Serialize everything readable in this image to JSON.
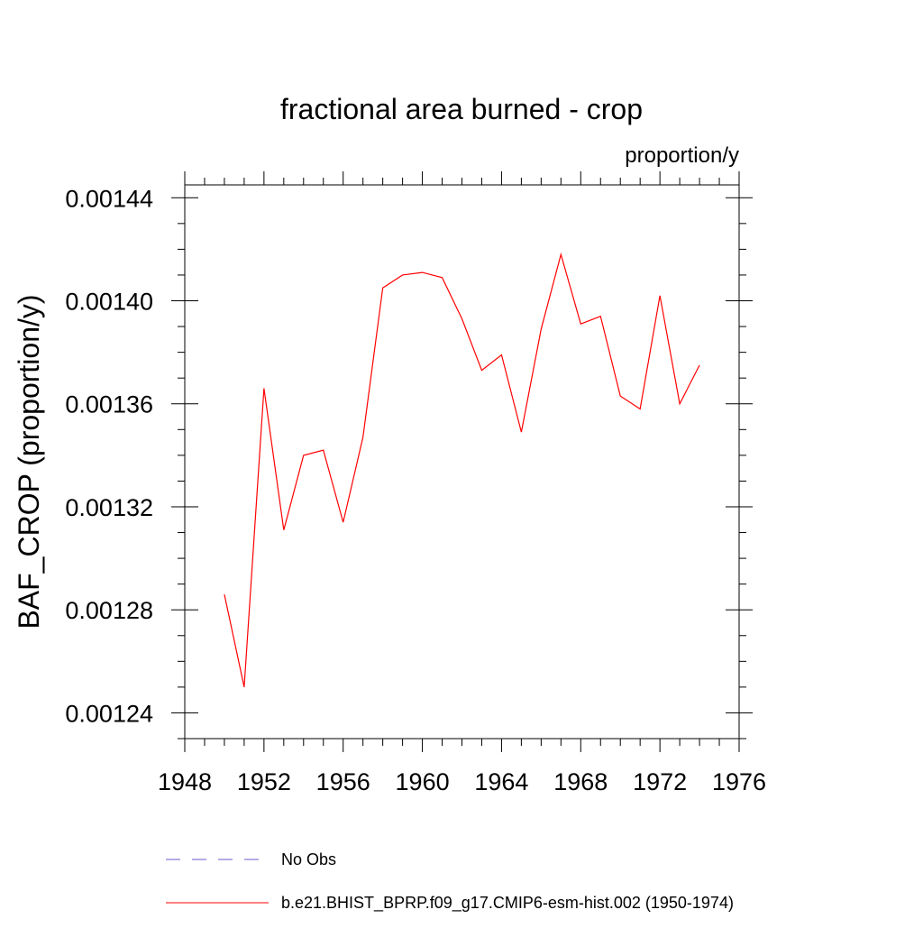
{
  "chart_data": {
    "type": "line",
    "title": "fractional area burned - crop",
    "units": "proportion/y",
    "xlabel": "",
    "ylabel": "BAF_CROP  (proportion/y)",
    "xlim": [
      1948,
      1976
    ],
    "ylim": [
      0.00123,
      0.001445
    ],
    "x_ticks": [
      1948,
      1952,
      1956,
      1960,
      1964,
      1968,
      1972,
      1976
    ],
    "x_tick_labels": [
      "1948",
      "1952",
      "1956",
      "1960",
      "1964",
      "1968",
      "1972",
      "1976"
    ],
    "x_minor_step": 1,
    "y_ticks": [
      0.00124,
      0.00128,
      0.00132,
      0.00136,
      0.0014,
      0.00144
    ],
    "y_tick_labels": [
      "0.00124",
      "0.00128",
      "0.00132",
      "0.00136",
      "0.00140",
      "0.00144"
    ],
    "y_minor_step": 1e-05,
    "grid": false,
    "series": [
      {
        "name": "b.e21.BHIST_BPRP.f09_g17.CMIP6-esm-hist.002 (1950-1974)",
        "color": "#ff0000",
        "style": "solid",
        "x": [
          1950,
          1951,
          1952,
          1953,
          1954,
          1955,
          1956,
          1957,
          1958,
          1959,
          1960,
          1961,
          1962,
          1963,
          1964,
          1965,
          1966,
          1967,
          1968,
          1969,
          1970,
          1971,
          1972,
          1973,
          1974
        ],
        "values": [
          0.001286,
          0.00125,
          0.001366,
          0.001311,
          0.00134,
          0.001342,
          0.001314,
          0.001347,
          0.001405,
          0.00141,
          0.001411,
          0.001409,
          0.001393,
          0.001373,
          0.001379,
          0.001349,
          0.001389,
          0.001418,
          0.001391,
          0.001394,
          0.001363,
          0.001358,
          0.001402,
          0.00136,
          0.001375
        ]
      }
    ],
    "legend": {
      "placement": "bottom",
      "entries": [
        {
          "label": "No Obs",
          "color": "#6a5acd",
          "style": "dashed"
        },
        {
          "label": "b.e21.BHIST_BPRP.f09_g17.CMIP6-esm-hist.002 (1950-1974)",
          "color": "#ff0000",
          "style": "solid"
        }
      ]
    }
  }
}
